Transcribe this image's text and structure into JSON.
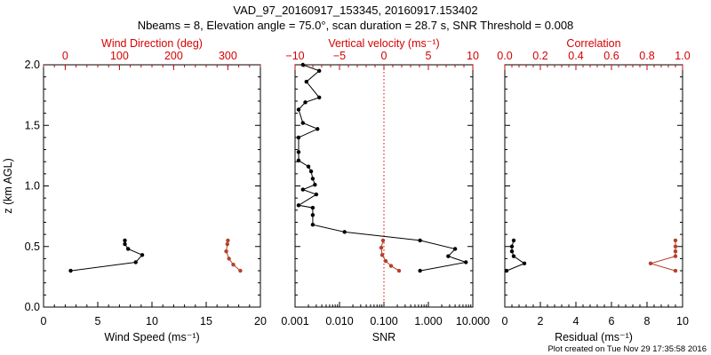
{
  "title_line1": "VAD_97_20160917_153345, 20160917.153402",
  "title_line2": "Nbeams = 8, Elevation angle = 75.0°, scan duration = 28.7 s, SNR Threshold = 0.008",
  "footer": "Plot created on Tue Nov 29 17:35:58 2016",
  "colors": {
    "black": "#000000",
    "red": "#d60000",
    "brown": "#b5402a"
  },
  "chart_data": [
    {
      "type": "line",
      "ylabel": "z (km AGL)",
      "ylim": [
        0,
        2
      ],
      "y_ticks": [
        "0.0",
        "0.5",
        "1.0",
        "1.5",
        "2.0"
      ],
      "bottom_axis": {
        "label": "Wind Speed (ms⁻¹)",
        "range": [
          0,
          20
        ],
        "ticks": [
          "0",
          "5",
          "10",
          "15",
          "20"
        ],
        "scale": "linear"
      },
      "top_axis": {
        "label": "Wind Direction (deg)",
        "range": [
          -40,
          360
        ],
        "ticks": [
          "0",
          "100",
          "200",
          "300"
        ],
        "tick_values": [
          0,
          100,
          200,
          300
        ],
        "scale": "linear"
      },
      "series": [
        {
          "axis": "bottom",
          "color": "black",
          "x": [
            2.5,
            8.5,
            9.1,
            7.8,
            7.5,
            7.5
          ],
          "y": [
            0.3,
            0.37,
            0.43,
            0.48,
            0.52,
            0.55
          ]
        },
        {
          "axis": "top",
          "color": "brown",
          "x": [
            323,
            310,
            302,
            297,
            299,
            300
          ],
          "y": [
            0.3,
            0.35,
            0.4,
            0.46,
            0.52,
            0.55
          ]
        }
      ]
    },
    {
      "type": "line",
      "ylim": [
        0,
        2
      ],
      "bottom_axis": {
        "label": "SNR",
        "range": [
          0.001,
          10
        ],
        "ticks": [
          "0.001",
          "0.010",
          "0.100",
          "1.000",
          "10.000"
        ],
        "tick_values": [
          0.001,
          0.01,
          0.1,
          1,
          10
        ],
        "scale": "log"
      },
      "top_axis": {
        "label": "Vertical velocity (ms⁻¹)",
        "range": [
          -10,
          10
        ],
        "ticks": [
          "−10",
          "−5",
          "0",
          "5",
          "10"
        ],
        "tick_values": [
          -10,
          -5,
          0,
          5,
          10
        ],
        "scale": "linear"
      },
      "zero_line": {
        "axis": "top",
        "value": 0
      },
      "series": [
        {
          "axis": "bottom",
          "color": "black",
          "x": [
            0.65,
            7.0,
            2.8,
            4.0,
            0.65,
            0.013,
            0.0025,
            0.0025,
            0.0025,
            0.0012,
            0.003,
            0.0015,
            0.0028,
            0.0025,
            0.0023,
            0.002,
            0.0012,
            0.0012,
            0.0012,
            0.0032,
            0.0015,
            0.0012,
            0.0017,
            0.0035,
            0.0018,
            0.0035,
            0.0015
          ],
          "y": [
            0.3,
            0.37,
            0.42,
            0.48,
            0.55,
            0.62,
            0.68,
            0.76,
            0.82,
            0.84,
            0.93,
            0.97,
            1.01,
            1.06,
            1.12,
            1.16,
            1.21,
            1.28,
            1.4,
            1.47,
            1.52,
            1.63,
            1.69,
            1.73,
            1.86,
            1.95,
            2.0
          ]
        },
        {
          "axis": "top",
          "color": "brown",
          "x": [
            1.7,
            0.8,
            0.2,
            -0.2,
            -0.3,
            -0.1
          ],
          "y": [
            0.3,
            0.34,
            0.38,
            0.43,
            0.49,
            0.55
          ]
        }
      ]
    },
    {
      "type": "line",
      "ylim": [
        0,
        2
      ],
      "bottom_axis": {
        "label": "Residual (ms⁻¹)",
        "range": [
          0,
          10
        ],
        "ticks": [
          "0",
          "2",
          "4",
          "6",
          "8",
          "10"
        ],
        "scale": "linear"
      },
      "top_axis": {
        "label": "Correlation",
        "range": [
          0,
          1
        ],
        "ticks": [
          "0.0",
          "0.2",
          "0.4",
          "0.6",
          "0.8",
          "1.0"
        ],
        "tick_values": [
          0.0,
          0.2,
          0.4,
          0.6,
          0.8,
          1.0
        ],
        "scale": "linear"
      },
      "series": [
        {
          "axis": "bottom",
          "color": "black",
          "x": [
            0.1,
            1.1,
            0.5,
            0.4,
            0.4,
            0.5
          ],
          "y": [
            0.3,
            0.36,
            0.42,
            0.46,
            0.5,
            0.55
          ]
        },
        {
          "axis": "top",
          "color": "brown",
          "x": [
            0.96,
            0.82,
            0.96,
            0.96,
            0.96,
            0.96
          ],
          "y": [
            0.3,
            0.36,
            0.42,
            0.46,
            0.5,
            0.55
          ]
        }
      ]
    }
  ]
}
